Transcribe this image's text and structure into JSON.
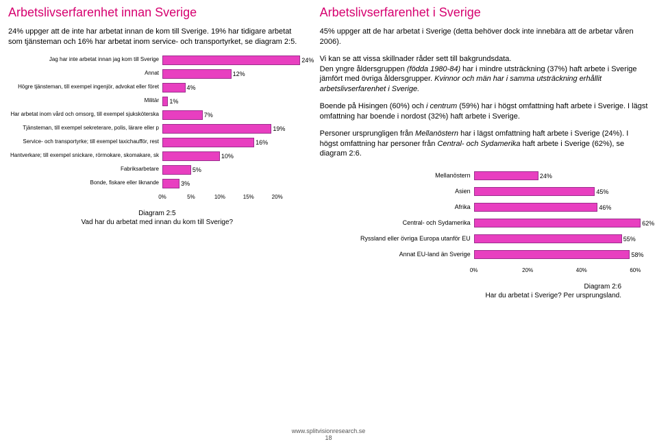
{
  "left": {
    "title": "Arbetslivserfarenhet innan Sverige",
    "intro": "24% uppger att de inte har arbetat innan de kom till Sverige. 19% har tidigare arbetat som tjänsteman och 16% har arbetat inom service- och transportyrket, se diagram 2:5.",
    "chart": {
      "type": "bar",
      "xmax": 25,
      "xticks": [
        0,
        5,
        10,
        15,
        20
      ],
      "xtick_labels": [
        "0%",
        "5%",
        "10%",
        "15%",
        "20%"
      ],
      "bar_color": "#e83fc0",
      "bar_border": "#9b2e8d",
      "categories": [
        "Jag har inte arbetat innan jag kom till Sverige",
        "Annat",
        "Högre tjänsteman, till exempel ingenjör, advokat eller föret",
        "Militär",
        "Har arbetat inom vård och omsorg, till exempel sjuksköterska",
        "Tjänsteman, till exempel sekreterare, polis, lärare eller p",
        "Service- och transportyrke; till exempel taxichaufför, rest",
        "Hantverkare; till exempel snickare, rörmokare, skomakare, sk",
        "Fabriksarbetare",
        "Bonde, fiskare eller liknande"
      ],
      "values": [
        24,
        12,
        4,
        1,
        7,
        19,
        16,
        10,
        5,
        3
      ],
      "value_labels": [
        "24%",
        "12%",
        "4%",
        "1%",
        "7%",
        "19%",
        "16%",
        "10%",
        "5%",
        "3%"
      ]
    },
    "caption_line1": "Diagram 2:5",
    "caption_line2": "Vad har du arbetat med innan du kom till Sverige?"
  },
  "right": {
    "title": "Arbetslivserfarenhet i Sverige",
    "p1": "45% uppger att de har arbetat i Sverige (detta behöver dock inte innebära att de arbetar våren 2006).",
    "p2a": "Vi kan se att vissa skillnader råder sett till bakgrundsdata.",
    "p2b_plain1": "Den yngre åldersgruppen ",
    "p2b_em1": "(födda 1980-84)",
    "p2b_plain2": " har i mindre utsträckning (37%) haft arbete i Sverige jämfört med övriga åldersgrupper. ",
    "p2b_em2": "Kvinnor och män har i samma utsträckning erhållit arbetslivserfarenhet i Sverige.",
    "p3a": "Boende på Hisingen (60%) och ",
    "p3em": "i centrum",
    "p3b": " (59%) har i högst omfattning haft arbete i Sverige. I lägst omfattning har boende i nordost (32%) haft arbete i Sverige.",
    "p4a": "Personer ursprungligen från ",
    "p4em1": "Mellanöstern",
    "p4b": " har i lägst omfattning haft arbete i Sverige (24%). I högst omfattning har personer från ",
    "p4em2": "Central- och Sydamerika",
    "p4c": " haft arbete i Sverige (62%), se diagram 2:6.",
    "chart": {
      "type": "bar",
      "xmax": 65,
      "xticks": [
        0,
        20,
        40,
        60
      ],
      "xtick_labels": [
        "0%",
        "20%",
        "40%",
        "60%"
      ],
      "bar_color": "#e83fc0",
      "bar_border": "#9b2e8d",
      "categories": [
        "Mellanöstern",
        "Asien",
        "Afrika",
        "Central- och Sydamerika",
        "Ryssland eller övriga Europa utanför EU",
        "Annat EU-land än Sverige"
      ],
      "values": [
        24,
        45,
        46,
        62,
        55,
        58
      ],
      "value_labels": [
        "24%",
        "45%",
        "46%",
        "62%",
        "55%",
        "58%"
      ]
    },
    "caption_line1": "Diagram 2:6",
    "caption_line2": "Har du arbetat i Sverige? Per ursprungsland."
  },
  "footer_url": "www.splitvisionresearch.se",
  "footer_page": "18"
}
